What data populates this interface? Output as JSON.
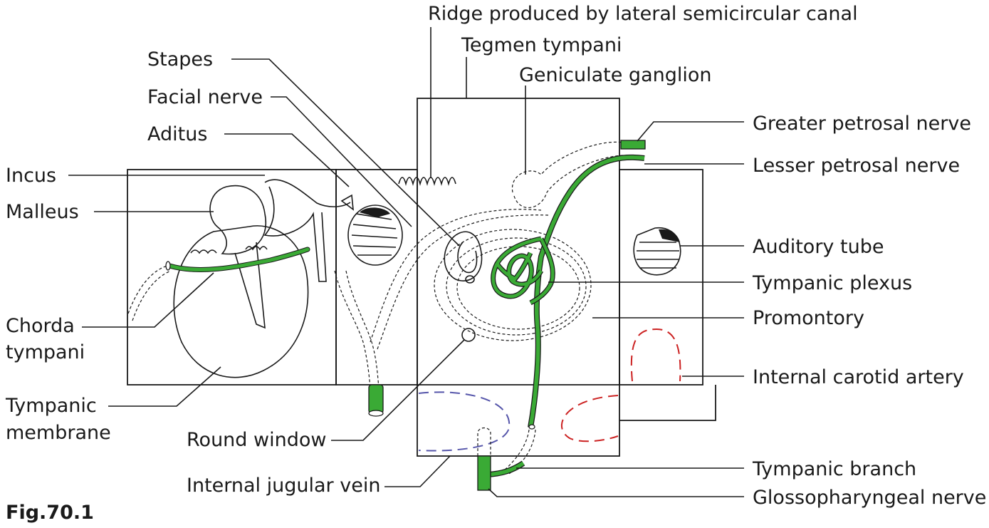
{
  "labels": {
    "ridge": "Ridge produced by lateral semicircular canal",
    "tegmen": "Tegmen tympani",
    "geniculate": "Geniculate ganglion",
    "stapes": "Stapes",
    "facial": "Facial nerve",
    "aditus": "Aditus",
    "incus": "Incus",
    "malleus": "Malleus",
    "chorda_1": "Chorda",
    "chorda_2": "tympani",
    "tympanic_membrane_1": "Tympanic",
    "tympanic_membrane_2": "membrane",
    "round_window": "Round window",
    "jugular": "Internal jugular vein",
    "greater_petrosal": "Greater petrosal nerve",
    "lesser_petrosal": "Lesser petrosal nerve",
    "auditory_tube": "Auditory tube",
    "tympanic_plexus": "Tympanic plexus",
    "promontory": "Promontory",
    "carotid": "Internal carotid artery",
    "tympanic_branch": "Tympanic branch",
    "glossopharyngeal": "Glossopharyngeal nerve"
  },
  "figure_label": "Fig.70.1",
  "colors": {
    "nerve": "#3aaa35",
    "artery": "#cc2222",
    "vein": "#5555aa",
    "line": "#1a1a1a"
  }
}
